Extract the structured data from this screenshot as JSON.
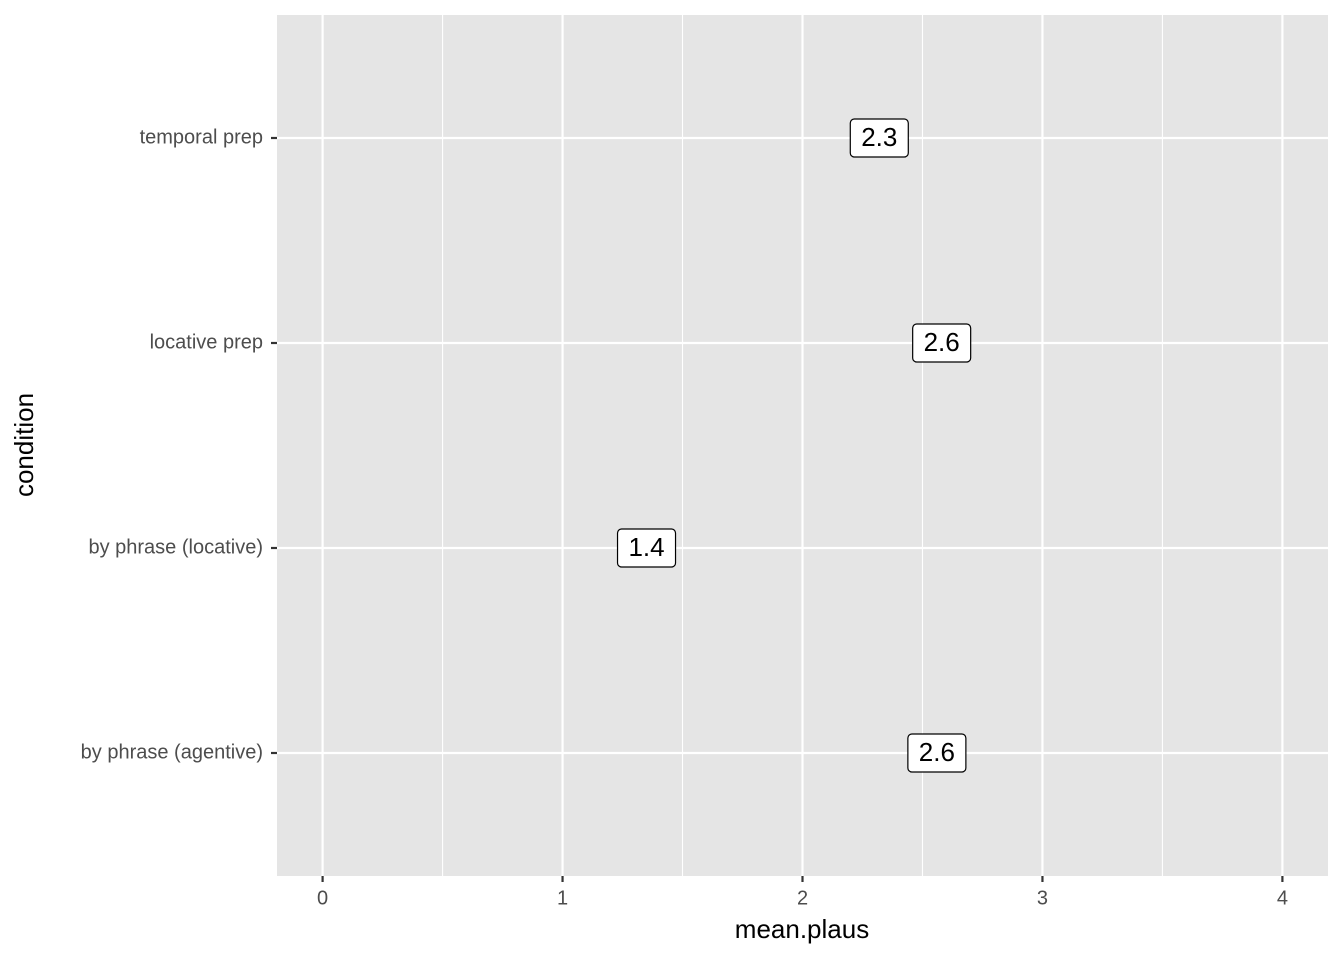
{
  "chart_data": {
    "type": "label",
    "x_label": "mean.plaus",
    "y_label": "condition",
    "categories": [
      "temporal prep",
      "locative prep",
      "by phrase (locative)",
      "by phrase (agentive)"
    ],
    "values": [
      2.32,
      2.58,
      1.35,
      2.56
    ],
    "value_labels": [
      "2.3",
      "2.6",
      "1.4",
      "2.6"
    ],
    "xlim": [
      -0.19,
      4.19
    ],
    "xticks": [
      0,
      1,
      2,
      3,
      4
    ],
    "grid": true,
    "minor_grid": true,
    "panel_color": "#e5e5e5",
    "grid_color": "#ffffff"
  }
}
